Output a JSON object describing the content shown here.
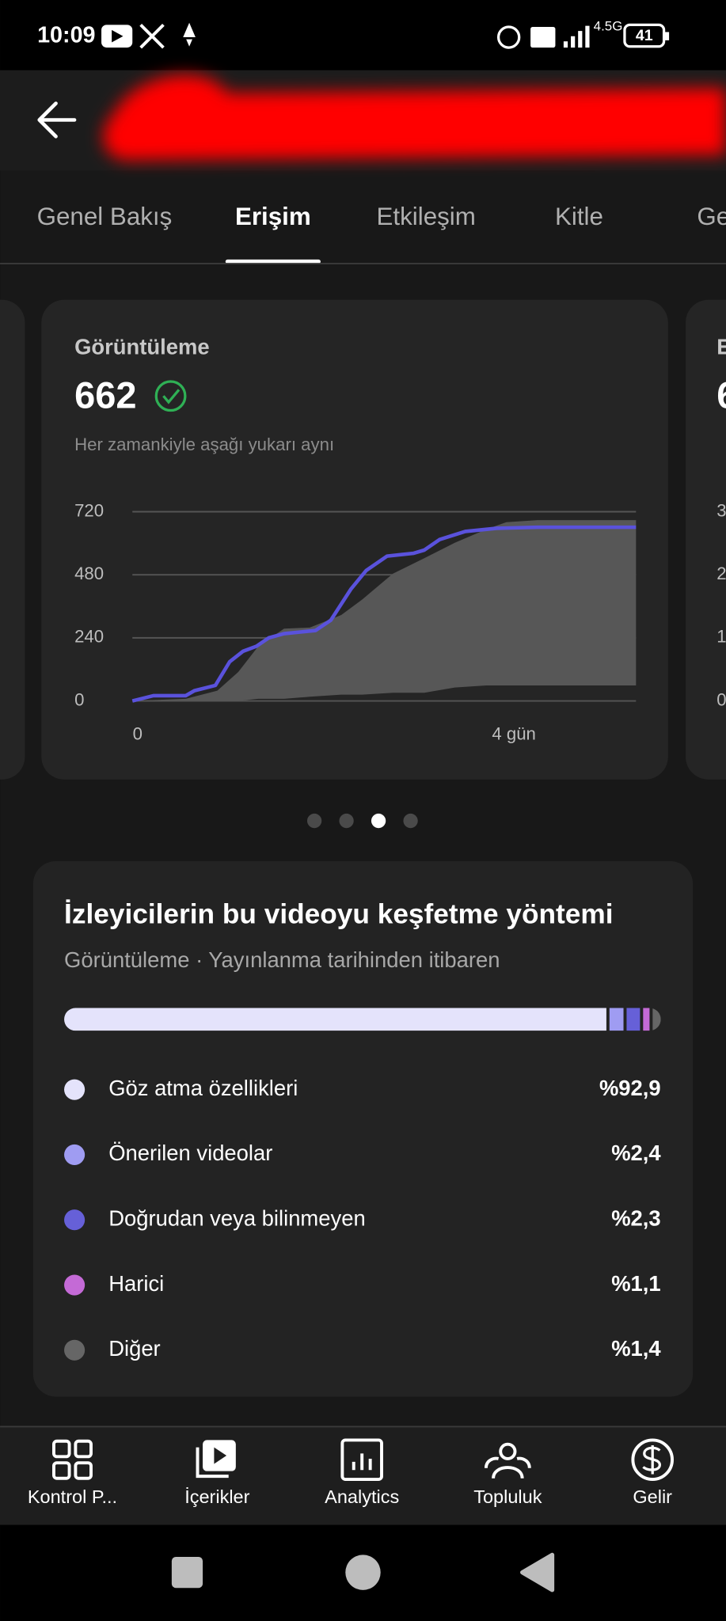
{
  "status_bar": {
    "time": "10:09",
    "network": "4.5G",
    "battery": "41"
  },
  "tabs": [
    "Genel Bakış",
    "Erişim",
    "Etkileşim",
    "Kitle",
    "Ge"
  ],
  "active_tab": 1,
  "chart_data": {
    "type": "line",
    "title": "Görüntüleme",
    "value": 662,
    "subtitle": "Her zamankiyle aşağı yukarı aynı",
    "xlim": [
      0,
      5.28
    ],
    "xticks": [
      0,
      {
        "value": 4,
        "label": "4 gün"
      }
    ],
    "ylim": [
      0,
      720
    ],
    "yticks": [
      0,
      240,
      480,
      720
    ],
    "grid": true,
    "series": [
      {
        "color": "#5a52dc",
        "x": [
          0,
          0.22,
          0.56,
          0.65,
          0.87,
          1.02,
          1.16,
          1.3,
          1.43,
          1.59,
          1.92,
          2.08,
          2.29,
          2.45,
          2.67,
          2.95,
          3.06,
          3.22,
          3.49,
          3.82,
          4.25,
          5.28
        ],
        "values": [
          0,
          20,
          20,
          39,
          59,
          149,
          189,
          208,
          240,
          256,
          268,
          307,
          425,
          496,
          551,
          562,
          574,
          614,
          645,
          657,
          661,
          661
        ]
      }
    ],
    "band": {
      "color": "#575757",
      "x": [
        0,
        0.56,
        0.89,
        1.11,
        1.32,
        1.59,
        1.86,
        2.19,
        2.41,
        2.73,
        3.06,
        3.38,
        3.71,
        3.92,
        4.25,
        5.28
      ],
      "high": [
        0,
        8,
        39,
        110,
        208,
        275,
        279,
        327,
        386,
        484,
        543,
        602,
        653,
        680,
        688,
        688
      ],
      "low": [
        0,
        0,
        0,
        0,
        8,
        8,
        16,
        24,
        24,
        31,
        31,
        51,
        59,
        59,
        59,
        59
      ]
    }
  },
  "peek_card": {
    "title": "E",
    "value": "6",
    "yticks": [
      "3",
      "2",
      "1",
      "0"
    ]
  },
  "discovery": {
    "title": "İzleyicilerin bu videoyu keşfetme yöntemi",
    "subtitle": "Görüntüleme · Yayınlanma tarihinden itibaren",
    "items": [
      {
        "name": "Göz atma özellikleri",
        "value": 92.9,
        "value_label": "%92,9",
        "color": "#e4e3fb"
      },
      {
        "name": "Önerilen videolar",
        "value": 2.4,
        "value_label": "%2,4",
        "color": "#9f9cf2"
      },
      {
        "name": "Doğrudan veya bilinmeyen",
        "value": 2.3,
        "value_label": "%2,3",
        "color": "#6660d8"
      },
      {
        "name": "Harici",
        "value": 1.1,
        "value_label": "%1,1",
        "color": "#c46ad6"
      },
      {
        "name": "Diğer",
        "value": 1.4,
        "value_label": "%1,4",
        "color": "#666666"
      }
    ]
  },
  "nav": [
    "Kontrol P...",
    "İçerikler",
    "Analytics",
    "Topluluk",
    "Gelir"
  ]
}
